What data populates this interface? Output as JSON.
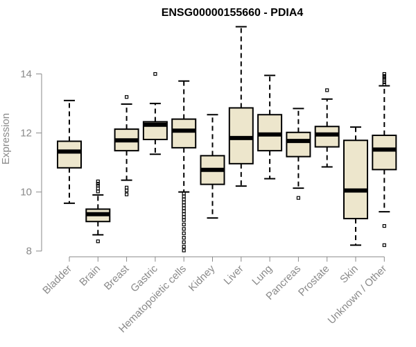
{
  "chart_data": {
    "type": "boxplot",
    "title": "ENSG00000155660 - PDIA4",
    "xlabel": "",
    "ylabel": "Expression",
    "ylim": [
      7.9,
      15.8
    ],
    "yticks": [
      8,
      10,
      12,
      14
    ],
    "colors": {
      "box_fill": "#ede6cc",
      "line": "#000000",
      "axis": "#8a8a8a"
    },
    "categories": [
      "Bladder",
      "Brain",
      "Breast",
      "Gastric",
      "Hematopoietic cells",
      "Kidney",
      "Liver",
      "Lung",
      "Pancreas",
      "Prostate",
      "Skin",
      "Unknown / Other"
    ],
    "boxes": [
      {
        "name": "Bladder",
        "whisker_low": 9.62,
        "q1": 10.82,
        "median": 11.37,
        "q3": 11.72,
        "whisker_high": 13.1,
        "outliers": []
      },
      {
        "name": "Brain",
        "whisker_low": 8.55,
        "q1": 9.0,
        "median": 9.25,
        "q3": 9.42,
        "whisker_high": 9.9,
        "outliers": [
          8.33,
          10.02,
          10.12,
          10.22,
          10.28,
          10.36
        ]
      },
      {
        "name": "Breast",
        "whisker_low": 10.4,
        "q1": 11.4,
        "median": 11.75,
        "q3": 12.13,
        "whisker_high": 12.98,
        "outliers": [
          9.92,
          10.05,
          10.15,
          13.22
        ]
      },
      {
        "name": "Gastric",
        "whisker_low": 11.28,
        "q1": 11.78,
        "median": 12.28,
        "q3": 12.38,
        "whisker_high": 13.0,
        "outliers": [
          14.0
        ]
      },
      {
        "name": "Hematopoietic cells",
        "whisker_low": 10.0,
        "q1": 11.5,
        "median": 12.08,
        "q3": 12.47,
        "whisker_high": 13.76,
        "outliers": [
          8.02,
          8.15,
          8.3,
          8.45,
          8.6,
          8.75,
          8.9,
          9.05,
          9.15,
          9.25,
          9.35,
          9.45,
          9.55,
          9.65,
          9.75,
          9.85,
          9.95
        ]
      },
      {
        "name": "Kidney",
        "whisker_low": 9.12,
        "q1": 10.26,
        "median": 10.75,
        "q3": 11.23,
        "whisker_high": 12.62,
        "outliers": []
      },
      {
        "name": "Liver",
        "whisker_low": 10.2,
        "q1": 10.96,
        "median": 11.83,
        "q3": 12.85,
        "whisker_high": 15.6,
        "outliers": []
      },
      {
        "name": "Lung",
        "whisker_low": 10.45,
        "q1": 11.4,
        "median": 11.95,
        "q3": 12.62,
        "whisker_high": 13.95,
        "outliers": []
      },
      {
        "name": "Pancreas",
        "whisker_low": 10.13,
        "q1": 11.2,
        "median": 11.73,
        "q3": 12.02,
        "whisker_high": 12.83,
        "outliers": [
          9.8
        ]
      },
      {
        "name": "Prostate",
        "whisker_low": 10.85,
        "q1": 11.53,
        "median": 11.95,
        "q3": 12.22,
        "whisker_high": 13.15,
        "outliers": [
          13.45
        ]
      },
      {
        "name": "Skin",
        "whisker_low": 8.2,
        "q1": 9.1,
        "median": 10.05,
        "q3": 11.75,
        "whisker_high": 12.2,
        "outliers": []
      },
      {
        "name": "Unknown / Other",
        "whisker_low": 9.33,
        "q1": 10.76,
        "median": 11.44,
        "q3": 11.92,
        "whisker_high": 13.6,
        "outliers": [
          8.2,
          8.85,
          13.65,
          13.72,
          13.8,
          13.87,
          13.93,
          14.0
        ]
      }
    ]
  }
}
